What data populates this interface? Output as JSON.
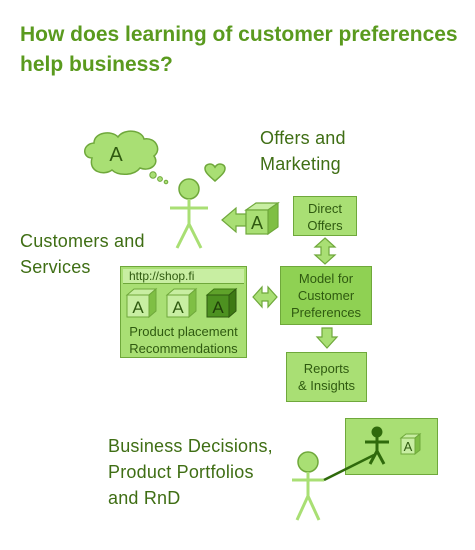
{
  "title": "How does learning of customer preferences help business?",
  "thought_bubble": {
    "letter": "A"
  },
  "offers_label": [
    "Offers and",
    "Marketing"
  ],
  "customers_label": [
    "Customers and",
    "Services"
  ],
  "direct_offers": [
    "Direct",
    "Offers"
  ],
  "model_box": [
    "Model for",
    "Customer",
    "Preferences"
  ],
  "reports_box": [
    "Reports",
    "& Insights"
  ],
  "shop": {
    "url": "http://shop.fi",
    "cube_letter": "A",
    "caption": [
      "Product placement",
      "Recommendations"
    ]
  },
  "offer_cube_letter": "A",
  "presentation_cube_letter": "A",
  "business_label": [
    "Business Decisions,",
    "Product Portfolios",
    "and RnD"
  ],
  "colors": {
    "accent": "#5a9a1e",
    "label_text": "#3f6e14",
    "box_fill": "#a9df74",
    "box_border": "#6fa83b",
    "dark_green": "#2f6a0c",
    "light_fill": "#c8eea2"
  }
}
